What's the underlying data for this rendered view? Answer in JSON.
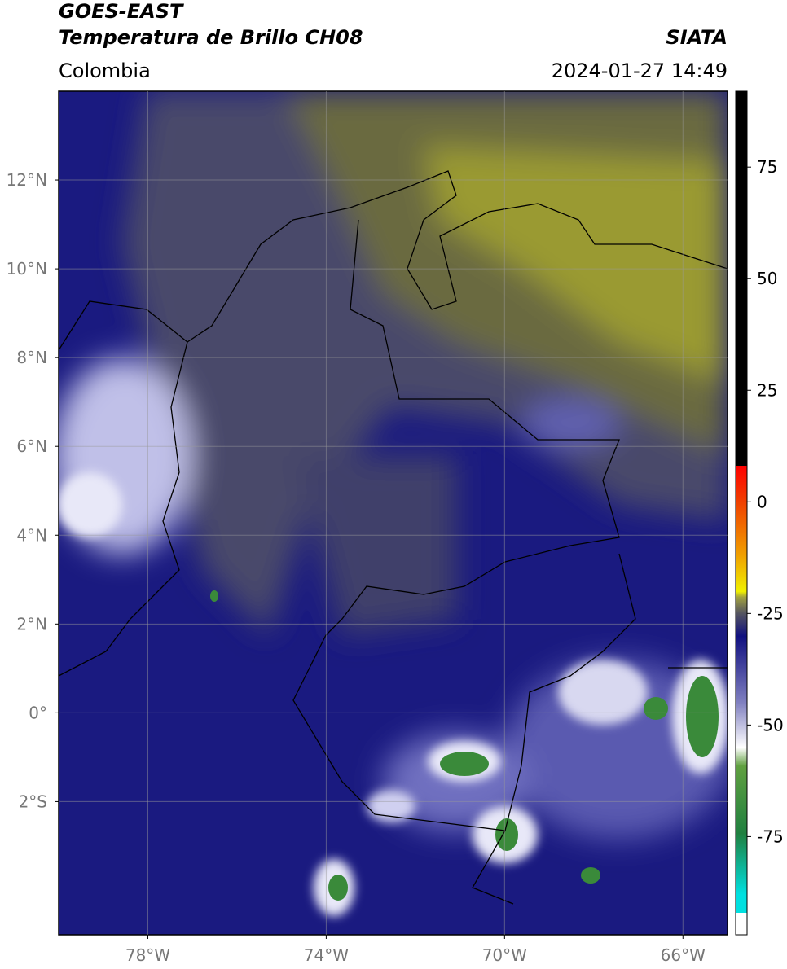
{
  "header": {
    "title": "GOES-EAST",
    "subtitle": "Temperatura de Brillo CH08",
    "source": "SIATA",
    "region": "Colombia",
    "datetime": "2024-01-27 14:49"
  },
  "map": {
    "lon_range": [
      -80,
      -65
    ],
    "lat_range": [
      -5,
      14
    ],
    "grid": true,
    "lon_ticks": [
      {
        "value": -78,
        "label": "78°W"
      },
      {
        "value": -74,
        "label": "74°W"
      },
      {
        "value": -70,
        "label": "70°W"
      },
      {
        "value": -66,
        "label": "66°W"
      }
    ],
    "lat_ticks": [
      {
        "value": 12,
        "label": "12°N"
      },
      {
        "value": 10,
        "label": "10°N"
      },
      {
        "value": 8,
        "label": "8°N"
      },
      {
        "value": 6,
        "label": "6°N"
      },
      {
        "value": 4,
        "label": "4°N"
      },
      {
        "value": 2,
        "label": "2°N"
      },
      {
        "value": 0,
        "label": "0°"
      },
      {
        "value": -2,
        "label": "2°S"
      }
    ]
  },
  "colorbar": {
    "range": [
      -97,
      92
    ],
    "ticks": [
      75,
      50,
      25,
      0,
      -25,
      -50,
      -75
    ]
  }
}
